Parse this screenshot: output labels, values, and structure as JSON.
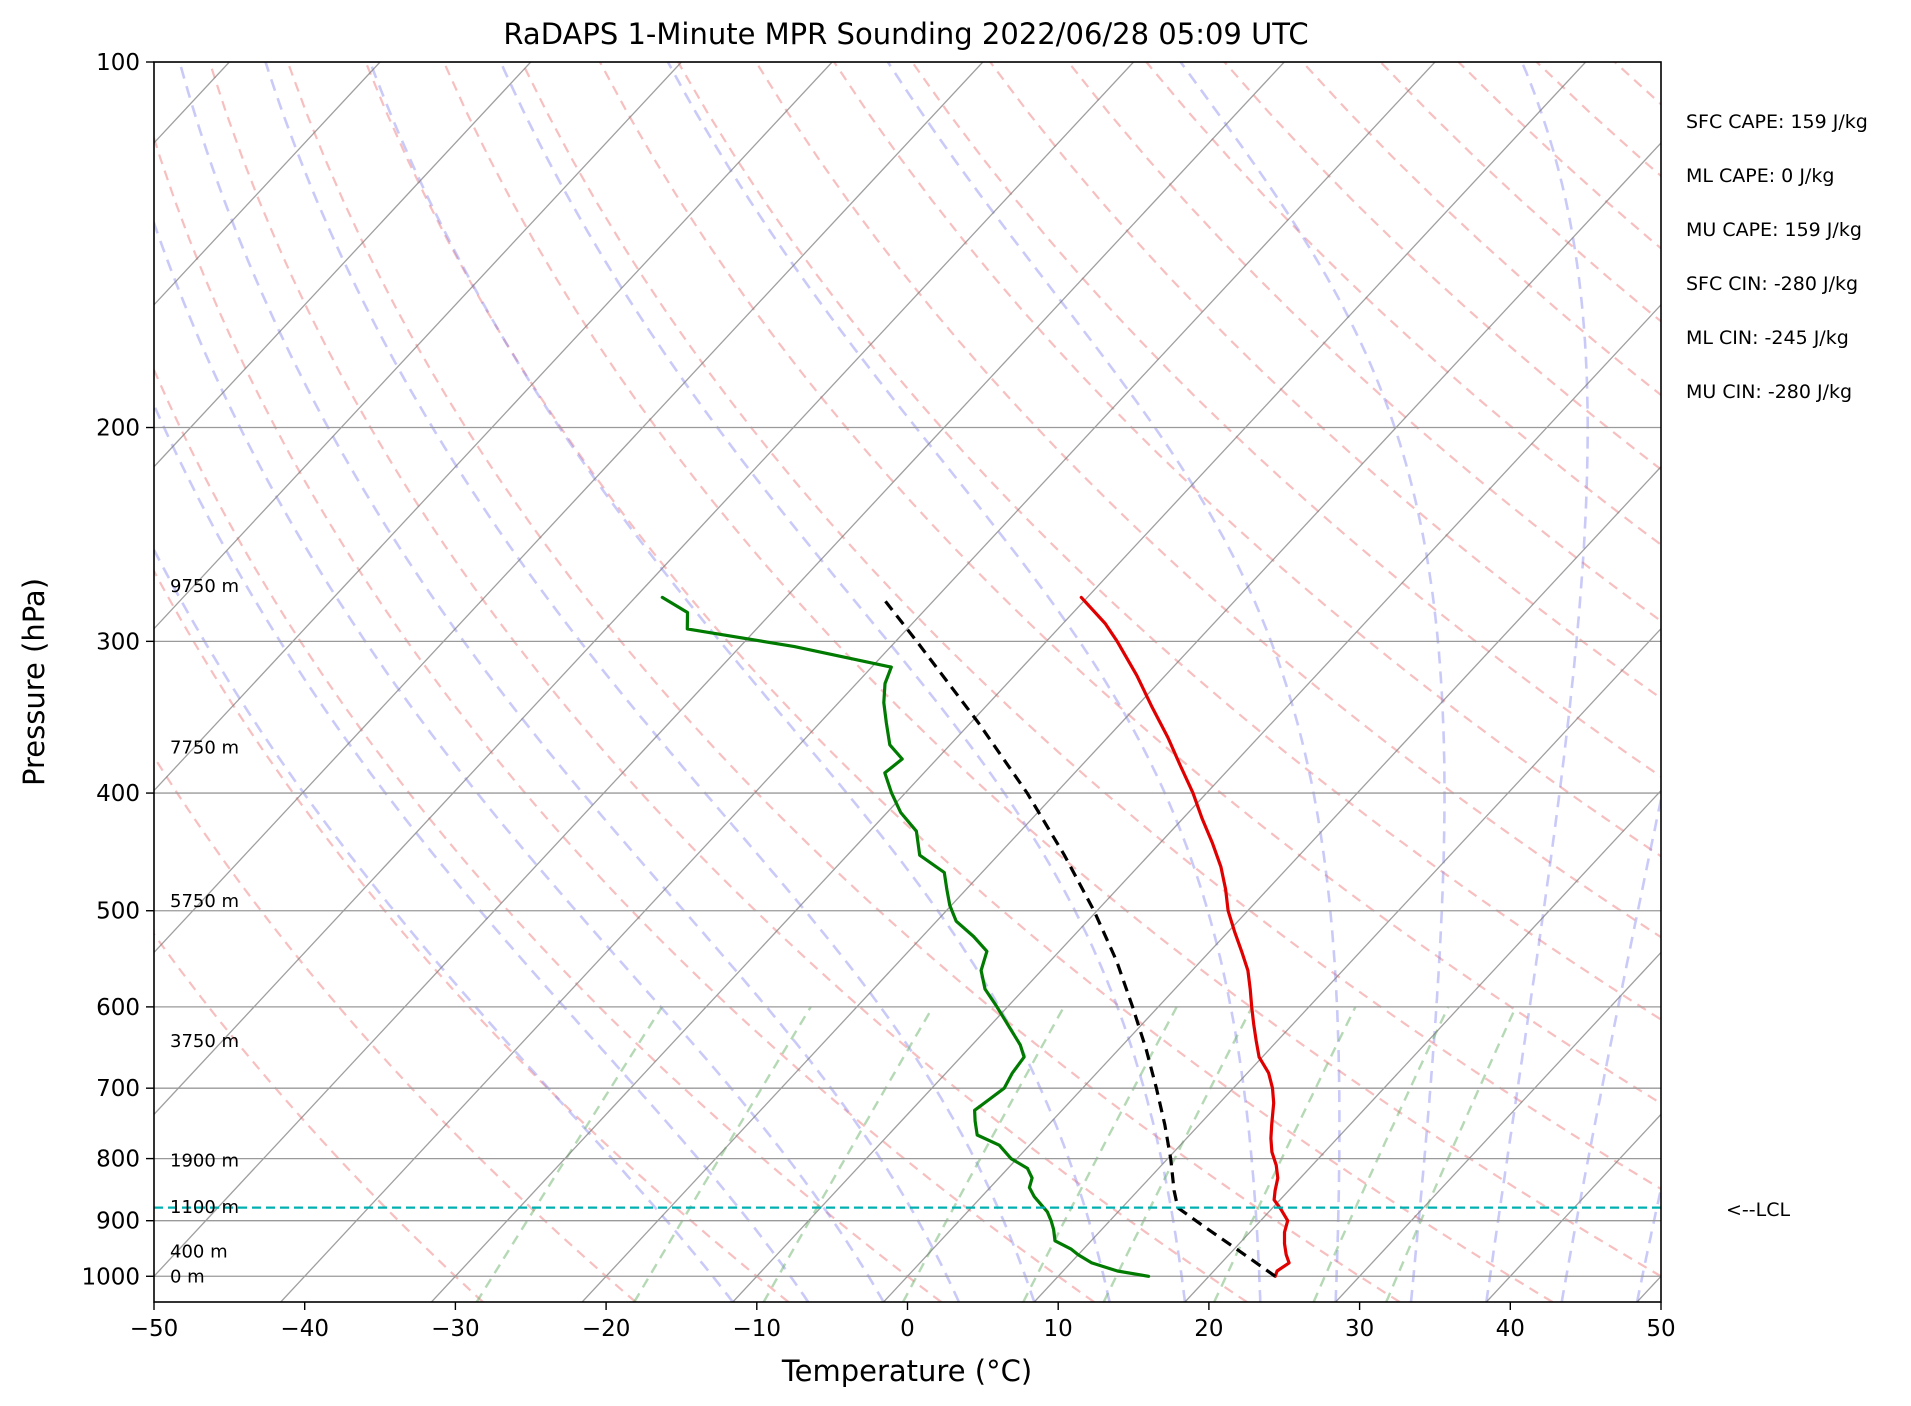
{
  "chart_data": {
    "type": "skew-t",
    "title": "RaDAPS 1-Minute MPR Sounding 2022/06/28 05:09 UTC",
    "xlabel": "Temperature (°C)",
    "ylabel": "Pressure (hPa)",
    "xlim": [
      -50,
      50
    ],
    "ylim": [
      1050,
      100
    ],
    "y_scale": "log",
    "skew_deg_per_decade_logp": 75,
    "grid": true,
    "x_ticks": [
      {
        "value": -50,
        "label": "−50"
      },
      {
        "value": -40,
        "label": "−40"
      },
      {
        "value": -30,
        "label": "−30"
      },
      {
        "value": -20,
        "label": "−20"
      },
      {
        "value": -10,
        "label": "−10"
      },
      {
        "value": 0,
        "label": "0"
      },
      {
        "value": 10,
        "label": "10"
      },
      {
        "value": 20,
        "label": "20"
      },
      {
        "value": 30,
        "label": "30"
      },
      {
        "value": 40,
        "label": "40"
      },
      {
        "value": 50,
        "label": "50"
      }
    ],
    "y_ticks": [
      {
        "value": 100,
        "label": "100"
      },
      {
        "value": 200,
        "label": "200"
      },
      {
        "value": 300,
        "label": "300"
      },
      {
        "value": 400,
        "label": "400"
      },
      {
        "value": 500,
        "label": "500"
      },
      {
        "value": 600,
        "label": "600"
      },
      {
        "value": 700,
        "label": "700"
      },
      {
        "value": 800,
        "label": "800"
      },
      {
        "value": 900,
        "label": "900"
      },
      {
        "value": 1000,
        "label": "1000"
      }
    ],
    "series": [
      {
        "role": "temperature",
        "color": "#e00000",
        "style": "solid",
        "points": [
          {
            "p": 1000,
            "t": 24.4
          },
          {
            "p": 990,
            "t": 24.2
          },
          {
            "p": 975,
            "t": 24.5
          },
          {
            "p": 960,
            "t": 23.8
          },
          {
            "p": 940,
            "t": 23.0
          },
          {
            "p": 920,
            "t": 22.3
          },
          {
            "p": 900,
            "t": 21.8
          },
          {
            "p": 880,
            "t": 20.6
          },
          {
            "p": 865,
            "t": 19.6
          },
          {
            "p": 850,
            "t": 19.1
          },
          {
            "p": 830,
            "t": 18.5
          },
          {
            "p": 810,
            "t": 17.6
          },
          {
            "p": 790,
            "t": 16.5
          },
          {
            "p": 770,
            "t": 15.6
          },
          {
            "p": 750,
            "t": 14.8
          },
          {
            "p": 720,
            "t": 13.6
          },
          {
            "p": 700,
            "t": 12.6
          },
          {
            "p": 680,
            "t": 11.4
          },
          {
            "p": 660,
            "t": 9.8
          },
          {
            "p": 640,
            "t": 8.6
          },
          {
            "p": 620,
            "t": 7.4
          },
          {
            "p": 600,
            "t": 6.2
          },
          {
            "p": 580,
            "t": 5.0
          },
          {
            "p": 560,
            "t": 3.7
          },
          {
            "p": 540,
            "t": 2.1
          },
          {
            "p": 520,
            "t": 0.4
          },
          {
            "p": 500,
            "t": -1.3
          },
          {
            "p": 480,
            "t": -2.8
          },
          {
            "p": 460,
            "t": -4.5
          },
          {
            "p": 440,
            "t": -6.5
          },
          {
            "p": 420,
            "t": -8.7
          },
          {
            "p": 400,
            "t": -10.9
          },
          {
            "p": 380,
            "t": -13.4
          },
          {
            "p": 360,
            "t": -16.0
          },
          {
            "p": 340,
            "t": -18.9
          },
          {
            "p": 320,
            "t": -21.9
          },
          {
            "p": 300,
            "t": -25.3
          },
          {
            "p": 290,
            "t": -27.2
          },
          {
            "p": 276,
            "t": -30.4
          }
        ]
      },
      {
        "role": "dewpoint",
        "color": "#007a00",
        "style": "solid",
        "points": [
          {
            "p": 1000,
            "t": 16.0
          },
          {
            "p": 990,
            "t": 13.6
          },
          {
            "p": 975,
            "t": 11.4
          },
          {
            "p": 960,
            "t": 10.0
          },
          {
            "p": 950,
            "t": 9.2
          },
          {
            "p": 935,
            "t": 7.6
          },
          {
            "p": 915,
            "t": 6.8
          },
          {
            "p": 900,
            "t": 6.1
          },
          {
            "p": 885,
            "t": 5.3
          },
          {
            "p": 860,
            "t": 3.5
          },
          {
            "p": 845,
            "t": 2.6
          },
          {
            "p": 830,
            "t": 2.2
          },
          {
            "p": 815,
            "t": 1.3
          },
          {
            "p": 800,
            "t": -0.4
          },
          {
            "p": 780,
            "t": -2.0
          },
          {
            "p": 765,
            "t": -4.1
          },
          {
            "p": 745,
            "t": -5.1
          },
          {
            "p": 730,
            "t": -5.8
          },
          {
            "p": 715,
            "t": -5.5
          },
          {
            "p": 700,
            "t": -5.2
          },
          {
            "p": 680,
            "t": -5.6
          },
          {
            "p": 660,
            "t": -5.8
          },
          {
            "p": 645,
            "t": -6.8
          },
          {
            "p": 625,
            "t": -8.5
          },
          {
            "p": 600,
            "t": -10.7
          },
          {
            "p": 580,
            "t": -12.6
          },
          {
            "p": 560,
            "t": -14.0
          },
          {
            "p": 540,
            "t": -14.8
          },
          {
            "p": 525,
            "t": -16.6
          },
          {
            "p": 510,
            "t": -18.7
          },
          {
            "p": 495,
            "t": -20.1
          },
          {
            "p": 480,
            "t": -21.3
          },
          {
            "p": 465,
            "t": -22.5
          },
          {
            "p": 450,
            "t": -25.2
          },
          {
            "p": 430,
            "t": -26.9
          },
          {
            "p": 415,
            "t": -29.1
          },
          {
            "p": 400,
            "t": -30.9
          },
          {
            "p": 385,
            "t": -32.6
          },
          {
            "p": 375,
            "t": -32.3
          },
          {
            "p": 365,
            "t": -34.0
          },
          {
            "p": 350,
            "t": -35.6
          },
          {
            "p": 337,
            "t": -37.0
          },
          {
            "p": 325,
            "t": -38.1
          },
          {
            "p": 315,
            "t": -38.7
          },
          {
            "p": 303,
            "t": -46.4
          },
          {
            "p": 293,
            "t": -54.6
          },
          {
            "p": 284,
            "t": -55.6
          },
          {
            "p": 276,
            "t": -58.2
          }
        ]
      },
      {
        "role": "parcel-profile",
        "color": "#000000",
        "style": "dashed",
        "points": [
          {
            "p": 1000,
            "t": 24.4
          },
          {
            "p": 970,
            "t": 21.9
          },
          {
            "p": 940,
            "t": 19.3
          },
          {
            "p": 910,
            "t": 16.6
          },
          {
            "p": 878,
            "t": 13.7
          },
          {
            "p": 850,
            "t": 12.4
          },
          {
            "p": 800,
            "t": 10.2
          },
          {
            "p": 750,
            "t": 7.7
          },
          {
            "p": 700,
            "t": 4.9
          },
          {
            "p": 650,
            "t": 1.8
          },
          {
            "p": 600,
            "t": -1.7
          },
          {
            "p": 550,
            "t": -5.6
          },
          {
            "p": 500,
            "t": -10.2
          },
          {
            "p": 450,
            "t": -15.6
          },
          {
            "p": 400,
            "t": -21.9
          },
          {
            "p": 350,
            "t": -29.5
          },
          {
            "p": 300,
            "t": -38.6
          },
          {
            "p": 276,
            "t": -43.6
          }
        ]
      }
    ],
    "lcl": {
      "p": 878,
      "label": "<--LCL",
      "color": "#00b0b0"
    },
    "height_labels": [
      {
        "p": 1000,
        "label": "0 m"
      },
      {
        "p": 954,
        "label": "400 m"
      },
      {
        "p": 877,
        "label": "1100 m"
      },
      {
        "p": 803,
        "label": "1900 m"
      },
      {
        "p": 640,
        "label": "3750 m"
      },
      {
        "p": 491,
        "label": "5750 m"
      },
      {
        "p": 367,
        "label": "7750 m"
      },
      {
        "p": 270,
        "label": "9750 m"
      }
    ],
    "background_lines": {
      "dry_adiabats_color": "#f08080",
      "moist_adiabats_color": "#8080f0",
      "mixing_ratio_color": "#6cb36c",
      "isotherms_color": "#808080"
    },
    "indices": [
      "SFC CAPE: 159 J/kg",
      "ML CAPE: 0 J/kg",
      "MU CAPE: 159 J/kg",
      "SFC CIN: -280 J/kg",
      "ML CIN: -245 J/kg",
      "MU CIN: -280 J/kg"
    ]
  }
}
